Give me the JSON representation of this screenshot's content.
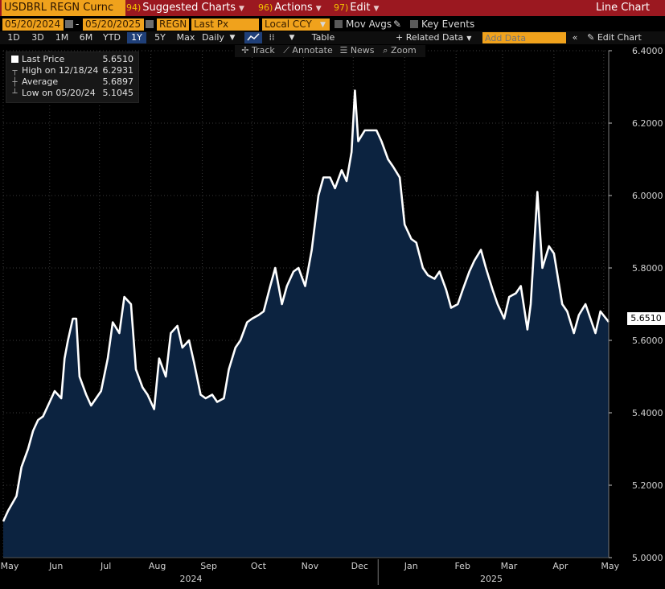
{
  "toolbar": {
    "ticker": "USDBRL REGN Curnc",
    "suggested_num": "94)",
    "suggested_label": "Suggested Charts",
    "actions_num": "96)",
    "actions_label": "Actions",
    "edit_num": "97)",
    "edit_label": "Edit",
    "chart_type": "Line Chart"
  },
  "fields": {
    "start_date": "05/20/2024",
    "dash": "-",
    "end_date": "05/20/2025",
    "source": "REGN",
    "field": "Last Px",
    "currency": "Local CCY",
    "mov_avgs": "Mov Avgs",
    "key_events": "Key Events"
  },
  "ranges": {
    "items": [
      "1D",
      "3D",
      "1M",
      "6M",
      "YTD",
      "1Y",
      "5Y",
      "Max"
    ],
    "selected": "1Y",
    "period": "Daily",
    "table": "Table",
    "related_data": "+ Related Data",
    "add_data_placeholder": "Add Data",
    "edit_chart": "Edit Chart"
  },
  "tools": {
    "track": "Track",
    "annotate": "Annotate",
    "news": "News",
    "zoom": "Zoom"
  },
  "legend": {
    "last_label": "Last Price",
    "last_value": "5.6510",
    "high_label": "High on 12/18/24",
    "high_value": "6.2931",
    "avg_label": "Average",
    "avg_value": "5.6897",
    "low_label": "Low on 05/20/24",
    "low_value": "5.1045"
  },
  "last_price_tag": "5.6510",
  "chart_data": {
    "type": "area",
    "series": [
      {
        "values": [
          [
            "2024-05-20",
            5.1
          ],
          [
            "2024-05-23",
            5.13
          ],
          [
            "2024-05-28",
            5.17
          ],
          [
            "2024-05-31",
            5.25
          ],
          [
            "2024-06-04",
            5.3
          ],
          [
            "2024-06-07",
            5.35
          ],
          [
            "2024-06-10",
            5.38
          ],
          [
            "2024-06-13",
            5.39
          ],
          [
            "2024-06-17",
            5.43
          ],
          [
            "2024-06-20",
            5.46
          ],
          [
            "2024-06-24",
            5.44
          ],
          [
            "2024-06-26",
            5.55
          ],
          [
            "2024-06-28",
            5.6
          ],
          [
            "2024-07-01",
            5.66
          ],
          [
            "2024-07-03",
            5.66
          ],
          [
            "2024-07-05",
            5.5
          ],
          [
            "2024-07-09",
            5.45
          ],
          [
            "2024-07-12",
            5.42
          ],
          [
            "2024-07-15",
            5.44
          ],
          [
            "2024-07-18",
            5.46
          ],
          [
            "2024-07-22",
            5.55
          ],
          [
            "2024-07-25",
            5.65
          ],
          [
            "2024-07-29",
            5.62
          ],
          [
            "2024-08-01",
            5.72
          ],
          [
            "2024-08-05",
            5.7
          ],
          [
            "2024-08-08",
            5.52
          ],
          [
            "2024-08-12",
            5.47
          ],
          [
            "2024-08-15",
            5.45
          ],
          [
            "2024-08-19",
            5.41
          ],
          [
            "2024-08-22",
            5.55
          ],
          [
            "2024-08-26",
            5.5
          ],
          [
            "2024-08-29",
            5.62
          ],
          [
            "2024-09-02",
            5.64
          ],
          [
            "2024-09-05",
            5.58
          ],
          [
            "2024-09-09",
            5.6
          ],
          [
            "2024-09-12",
            5.54
          ],
          [
            "2024-09-16",
            5.45
          ],
          [
            "2024-09-19",
            5.44
          ],
          [
            "2024-09-23",
            5.45
          ],
          [
            "2024-09-26",
            5.43
          ],
          [
            "2024-09-30",
            5.44
          ],
          [
            "2024-10-03",
            5.52
          ],
          [
            "2024-10-07",
            5.58
          ],
          [
            "2024-10-10",
            5.6
          ],
          [
            "2024-10-14",
            5.65
          ],
          [
            "2024-10-17",
            5.66
          ],
          [
            "2024-10-21",
            5.67
          ],
          [
            "2024-10-24",
            5.68
          ],
          [
            "2024-10-28",
            5.75
          ],
          [
            "2024-10-31",
            5.8
          ],
          [
            "2024-11-04",
            5.7
          ],
          [
            "2024-11-07",
            5.75
          ],
          [
            "2024-11-11",
            5.79
          ],
          [
            "2024-11-14",
            5.8
          ],
          [
            "2024-11-18",
            5.75
          ],
          [
            "2024-11-20",
            5.8
          ],
          [
            "2024-11-22",
            5.85
          ],
          [
            "2024-11-26",
            6.0
          ],
          [
            "2024-11-29",
            6.05
          ],
          [
            "2024-12-03",
            6.05
          ],
          [
            "2024-12-06",
            6.02
          ],
          [
            "2024-12-10",
            6.07
          ],
          [
            "2024-12-13",
            6.04
          ],
          [
            "2024-12-16",
            6.12
          ],
          [
            "2024-12-18",
            6.29
          ],
          [
            "2024-12-20",
            6.15
          ],
          [
            "2024-12-24",
            6.18
          ],
          [
            "2024-12-27",
            6.18
          ],
          [
            "2024-12-31",
            6.18
          ],
          [
            "2025-01-03",
            6.15
          ],
          [
            "2025-01-07",
            6.1
          ],
          [
            "2025-01-10",
            6.08
          ],
          [
            "2025-01-14",
            6.05
          ],
          [
            "2025-01-17",
            5.92
          ],
          [
            "2025-01-21",
            5.88
          ],
          [
            "2025-01-24",
            5.87
          ],
          [
            "2025-01-28",
            5.8
          ],
          [
            "2025-01-31",
            5.78
          ],
          [
            "2025-02-04",
            5.77
          ],
          [
            "2025-02-07",
            5.79
          ],
          [
            "2025-02-11",
            5.74
          ],
          [
            "2025-02-14",
            5.69
          ],
          [
            "2025-02-18",
            5.7
          ],
          [
            "2025-02-21",
            5.74
          ],
          [
            "2025-02-25",
            5.79
          ],
          [
            "2025-02-28",
            5.82
          ],
          [
            "2025-03-04",
            5.85
          ],
          [
            "2025-03-07",
            5.8
          ],
          [
            "2025-03-11",
            5.74
          ],
          [
            "2025-03-14",
            5.7
          ],
          [
            "2025-03-18",
            5.66
          ],
          [
            "2025-03-21",
            5.72
          ],
          [
            "2025-03-25",
            5.73
          ],
          [
            "2025-03-28",
            5.75
          ],
          [
            "2025-04-01",
            5.63
          ],
          [
            "2025-04-03",
            5.7
          ],
          [
            "2025-04-07",
            6.01
          ],
          [
            "2025-04-10",
            5.8
          ],
          [
            "2025-04-14",
            5.86
          ],
          [
            "2025-04-17",
            5.84
          ],
          [
            "2025-04-22",
            5.7
          ],
          [
            "2025-04-25",
            5.68
          ],
          [
            "2025-04-29",
            5.62
          ],
          [
            "2025-05-02",
            5.67
          ],
          [
            "2025-05-06",
            5.7
          ],
          [
            "2025-05-09",
            5.66
          ],
          [
            "2025-05-12",
            5.62
          ],
          [
            "2025-05-15",
            5.68
          ],
          [
            "2025-05-20",
            5.651
          ]
        ]
      }
    ],
    "x_range": [
      "2024-05-20",
      "2025-05-20"
    ],
    "ylim": [
      5.0,
      6.4
    ],
    "y_ticks": [
      "5.0000",
      "5.2000",
      "5.4000",
      "5.6000",
      "5.8000",
      "6.0000",
      "6.2000",
      "6.4000"
    ],
    "x_ticks": [
      {
        "date": "2024-05-20",
        "label": "May"
      },
      {
        "date": "2024-06-17",
        "label": "Jun"
      },
      {
        "date": "2024-07-17",
        "label": "Jul"
      },
      {
        "date": "2024-08-17",
        "label": "Aug"
      },
      {
        "date": "2024-09-17",
        "label": "Sep"
      },
      {
        "date": "2024-10-17",
        "label": "Oct"
      },
      {
        "date": "2024-11-17",
        "label": "Nov"
      },
      {
        "date": "2024-12-17",
        "label": "Dec"
      },
      {
        "date": "2025-01-17",
        "label": "Jan"
      },
      {
        "date": "2025-02-17",
        "label": "Feb"
      },
      {
        "date": "2025-03-17",
        "label": "Mar"
      },
      {
        "date": "2025-04-17",
        "label": "Apr"
      },
      {
        "date": "2025-05-17",
        "label": "May"
      }
    ],
    "year_labels": [
      {
        "date": "2024-09-17",
        "label": "2024"
      },
      {
        "date": "2025-03-17",
        "label": "2025"
      }
    ],
    "year_divider": "2025-01-01",
    "grid": true,
    "colors": {
      "line": "#ffffff",
      "fill": "#0c2340",
      "grid": "#3a3a3a",
      "background": "#000000"
    }
  }
}
